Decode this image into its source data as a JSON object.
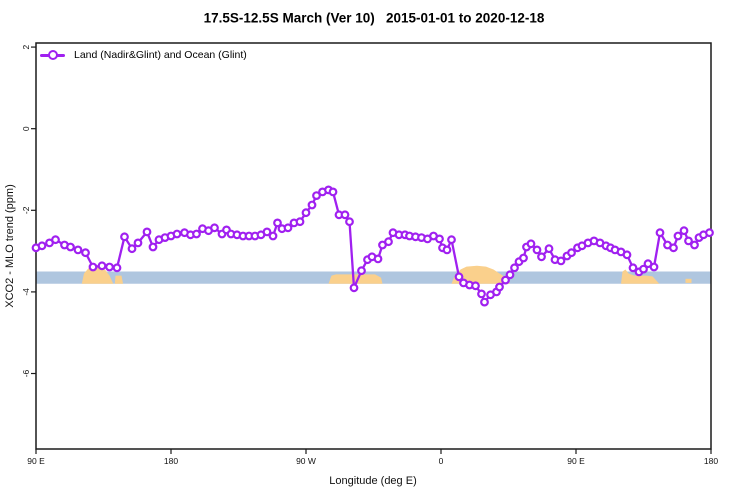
{
  "colors": {
    "series": "#a020f0",
    "band": "#afc6df",
    "land": "#fad08c",
    "frame": "#1a1a1a",
    "tick_text": "#111111"
  },
  "legend_label": "Land (Nadir&Glint) and Ocean (Glint)",
  "chart_data": {
    "type": "line",
    "title": "17.5S-12.5S March (Ver 10)   2015-01-01 to 2020-12-18",
    "xlabel": "Longitude (deg E)",
    "ylabel": "XCO2 - MLO trend (ppm)",
    "legend": [
      "Land (Nadir&Glint) and Ocean (Glint)"
    ],
    "legend_position": "top-left",
    "grid": false,
    "xlim": [
      90,
      540
    ],
    "ylim": [
      -7.85,
      2.1
    ],
    "x_ticks": [
      {
        "pos": 90,
        "label": "90 E"
      },
      {
        "pos": 180,
        "label": "180"
      },
      {
        "pos": 270,
        "label": "90 W"
      },
      {
        "pos": 360,
        "label": "0"
      },
      {
        "pos": 450,
        "label": "90 E"
      },
      {
        "pos": 540,
        "label": "180"
      }
    ],
    "y_ticks": [
      {
        "pos": 2,
        "label": "2"
      },
      {
        "pos": 0,
        "label": "0"
      },
      {
        "pos": -2,
        "label": "-2"
      },
      {
        "pos": -4,
        "label": "-4"
      },
      {
        "pos": -6,
        "label": "-6"
      }
    ],
    "reference_band": {
      "y_top": -3.5,
      "y_bottom": -3.8
    },
    "land_patches": [
      {
        "name": "australia-west",
        "outline": [
          [
            120.5,
            -3.8
          ],
          [
            122,
            -3.55
          ],
          [
            125,
            -3.42
          ],
          [
            128,
            -3.38
          ],
          [
            133,
            -3.38
          ],
          [
            136,
            -3.45
          ],
          [
            139,
            -3.6
          ],
          [
            141.5,
            -3.8
          ]
        ]
      },
      {
        "name": "australia-west-sliver",
        "outline": [
          [
            142.5,
            -3.8
          ],
          [
            143,
            -3.6
          ],
          [
            147,
            -3.6
          ],
          [
            148,
            -3.8
          ]
        ]
      },
      {
        "name": "south-america",
        "outline": [
          [
            285,
            -3.8
          ],
          [
            287,
            -3.6
          ],
          [
            290,
            -3.57
          ],
          [
            316,
            -3.57
          ],
          [
            320,
            -3.65
          ],
          [
            321,
            -3.8
          ]
        ]
      },
      {
        "name": "africa-madagascar",
        "outline": [
          [
            367,
            -3.8
          ],
          [
            369,
            -3.62
          ],
          [
            373,
            -3.45
          ],
          [
            377,
            -3.38
          ],
          [
            384,
            -3.36
          ],
          [
            390,
            -3.38
          ],
          [
            395,
            -3.45
          ],
          [
            399,
            -3.55
          ],
          [
            402,
            -3.62
          ],
          [
            406,
            -3.8
          ]
        ]
      },
      {
        "name": "australia-east",
        "outline": [
          [
            480,
            -3.8
          ],
          [
            481,
            -3.5
          ],
          [
            483,
            -3.45
          ],
          [
            485,
            -3.55
          ],
          [
            489,
            -3.6
          ],
          [
            497,
            -3.6
          ],
          [
            501,
            -3.62
          ],
          [
            505.5,
            -3.8
          ]
        ]
      },
      {
        "name": "small-sliver",
        "outline": [
          [
            523,
            -3.78
          ],
          [
            523,
            -3.68
          ],
          [
            527,
            -3.68
          ],
          [
            527,
            -3.78
          ]
        ]
      }
    ],
    "series": [
      {
        "name": "Land (Nadir&Glint) and Ocean (Glint)",
        "marker": "circle-open",
        "points": [
          [
            90,
            -2.92
          ],
          [
            94,
            -2.87
          ],
          [
            99,
            -2.8
          ],
          [
            103,
            -2.72
          ],
          [
            109,
            -2.85
          ],
          [
            113,
            -2.9
          ],
          [
            118,
            -2.97
          ],
          [
            123,
            -3.04
          ],
          [
            128,
            -3.39
          ],
          [
            134,
            -3.36
          ],
          [
            139,
            -3.39
          ],
          [
            144,
            -3.41
          ],
          [
            149,
            -2.65
          ],
          [
            154,
            -2.94
          ],
          [
            158,
            -2.8
          ],
          [
            164,
            -2.53
          ],
          [
            168,
            -2.9
          ],
          [
            172,
            -2.72
          ],
          [
            176,
            -2.67
          ],
          [
            180,
            -2.63
          ],
          [
            184,
            -2.58
          ],
          [
            189,
            -2.55
          ],
          [
            193,
            -2.6
          ],
          [
            197,
            -2.58
          ],
          [
            201,
            -2.45
          ],
          [
            205,
            -2.5
          ],
          [
            209,
            -2.43
          ],
          [
            214,
            -2.58
          ],
          [
            217,
            -2.48
          ],
          [
            220,
            -2.58
          ],
          [
            224,
            -2.6
          ],
          [
            228,
            -2.63
          ],
          [
            232,
            -2.63
          ],
          [
            236,
            -2.63
          ],
          [
            240,
            -2.6
          ],
          [
            244,
            -2.53
          ],
          [
            248,
            -2.63
          ],
          [
            251,
            -2.31
          ],
          [
            254,
            -2.45
          ],
          [
            258,
            -2.43
          ],
          [
            262,
            -2.31
          ],
          [
            266,
            -2.28
          ],
          [
            270,
            -2.06
          ],
          [
            274,
            -1.87
          ],
          [
            277,
            -1.64
          ],
          [
            281,
            -1.55
          ],
          [
            285,
            -1.5
          ],
          [
            288,
            -1.55
          ],
          [
            292,
            -2.11
          ],
          [
            296,
            -2.11
          ],
          [
            299,
            -2.28
          ],
          [
            302,
            -3.9
          ],
          [
            307,
            -3.48
          ],
          [
            311,
            -3.21
          ],
          [
            314,
            -3.14
          ],
          [
            318,
            -3.19
          ],
          [
            321,
            -2.85
          ],
          [
            325,
            -2.77
          ],
          [
            328,
            -2.55
          ],
          [
            332,
            -2.6
          ],
          [
            336,
            -2.6
          ],
          [
            339,
            -2.63
          ],
          [
            343,
            -2.65
          ],
          [
            347,
            -2.67
          ],
          [
            351,
            -2.7
          ],
          [
            355,
            -2.63
          ],
          [
            359,
            -2.7
          ],
          [
            361,
            -2.92
          ],
          [
            364,
            -2.97
          ],
          [
            367,
            -2.72
          ],
          [
            372,
            -3.63
          ],
          [
            375,
            -3.78
          ],
          [
            379,
            -3.83
          ],
          [
            383,
            -3.85
          ],
          [
            387,
            -4.05
          ],
          [
            389,
            -4.25
          ],
          [
            393,
            -4.07
          ],
          [
            397,
            -4.0
          ],
          [
            399,
            -3.88
          ],
          [
            403,
            -3.71
          ],
          [
            406,
            -3.58
          ],
          [
            409,
            -3.41
          ],
          [
            412,
            -3.26
          ],
          [
            415,
            -3.17
          ],
          [
            417,
            -2.9
          ],
          [
            420,
            -2.82
          ],
          [
            424,
            -2.97
          ],
          [
            427,
            -3.14
          ],
          [
            432,
            -2.94
          ],
          [
            436,
            -3.21
          ],
          [
            440,
            -3.24
          ],
          [
            444,
            -3.12
          ],
          [
            447,
            -3.04
          ],
          [
            451,
            -2.92
          ],
          [
            454,
            -2.87
          ],
          [
            458,
            -2.8
          ],
          [
            462,
            -2.75
          ],
          [
            466,
            -2.8
          ],
          [
            470,
            -2.87
          ],
          [
            473,
            -2.92
          ],
          [
            476,
            -2.97
          ],
          [
            480,
            -3.02
          ],
          [
            484,
            -3.09
          ],
          [
            488,
            -3.41
          ],
          [
            492,
            -3.51
          ],
          [
            495,
            -3.44
          ],
          [
            498,
            -3.31
          ],
          [
            502,
            -3.39
          ],
          [
            506,
            -2.55
          ],
          [
            511,
            -2.85
          ],
          [
            515,
            -2.92
          ],
          [
            518,
            -2.63
          ],
          [
            522,
            -2.5
          ],
          [
            525,
            -2.75
          ],
          [
            529,
            -2.85
          ],
          [
            532,
            -2.67
          ],
          [
            535,
            -2.6
          ],
          [
            539,
            -2.55
          ]
        ]
      }
    ]
  }
}
